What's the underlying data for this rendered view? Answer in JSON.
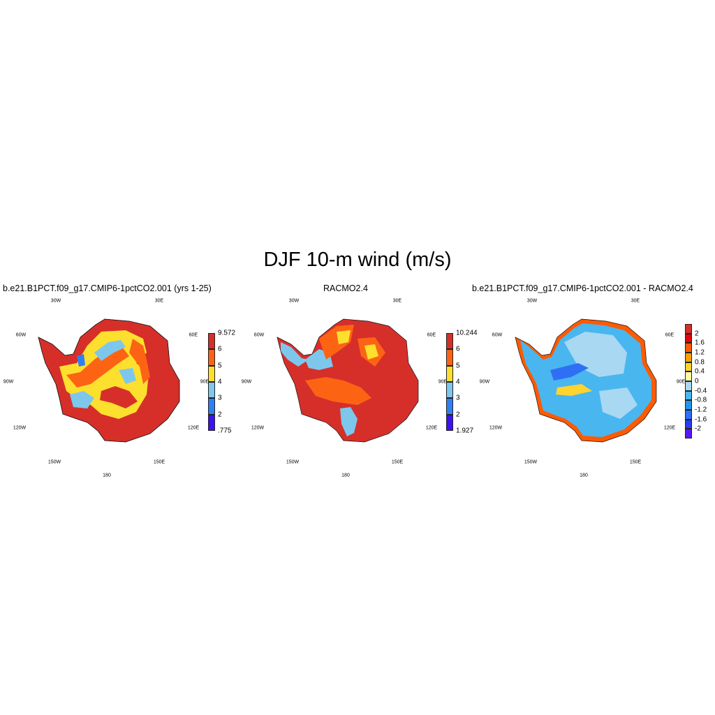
{
  "title": "DJF 10-m wind (m/s)",
  "panels": [
    {
      "title": "b.e21.B1PCT.f09_g17.CMIP6-1pctCO2.001 (yrs 1-25)",
      "colorbar": {
        "labels": [
          "9.572",
          "6",
          "5",
          "4",
          "3",
          "2",
          ".775"
        ],
        "colors": [
          "#d62f2a",
          "#fc6414",
          "#fddf2d",
          "#7dc7ed",
          "#2f7ff4",
          "#3a12f4"
        ]
      }
    },
    {
      "title": "RACMO2.4",
      "colorbar": {
        "labels": [
          "10.244",
          "6",
          "5",
          "4",
          "3",
          "2",
          "1.927"
        ],
        "colors": [
          "#d62f2a",
          "#fc6414",
          "#fddf2d",
          "#7dc7ed",
          "#2f7ff4",
          "#3a12f4"
        ]
      }
    },
    {
      "title": "b.e21.B1PCT.f09_g17.CMIP6-1pctCO2.001 - RACMO2.4",
      "colorbar": {
        "labels": [
          "2",
          "1.6",
          "1.2",
          "0.8",
          "0.4",
          "0",
          "-0.4",
          "-0.8",
          "-1.2",
          "-1.6",
          "-2"
        ],
        "colors": [
          "#d62f2a",
          "#e8000b",
          "#ff5a00",
          "#ffa000",
          "#ffd42e",
          "#fffaa3",
          "#a9d8f2",
          "#49b6f0",
          "#1f97ef",
          "#2f6ff6",
          "#2a3bf4",
          "#5a16f5"
        ]
      }
    }
  ],
  "lon_labels": [
    "30W",
    "30E",
    "60W",
    "60E",
    "90W",
    "90E",
    "120W",
    "120E",
    "150W",
    "150E",
    "180"
  ]
}
